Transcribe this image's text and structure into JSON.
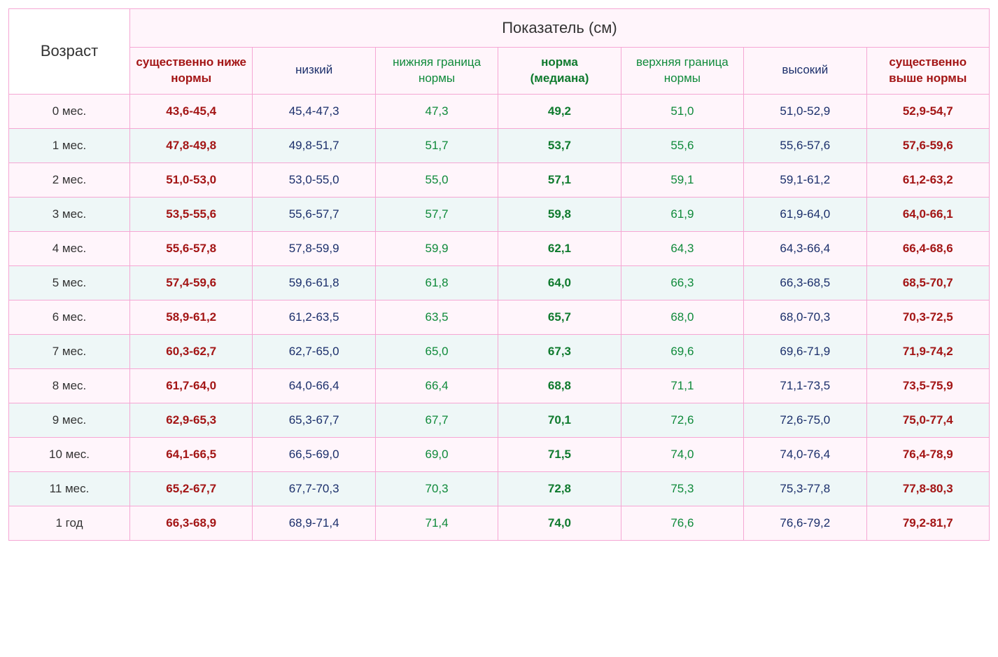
{
  "table": {
    "type": "table",
    "border_color": "#f5a7d4",
    "row_bg_odd": "#fff5fb",
    "row_bg_even": "#eef7f7",
    "header_bg": "#fff5fb",
    "age_header_bg": "#ffffff",
    "font_family": "Verdana",
    "cell_fontsize": 17,
    "header_fontsize": 22,
    "subheader_fontsize": 17,
    "colors": {
      "red": "#a31515",
      "navy": "#1b2f6b",
      "green": "#0f8a3a",
      "green_bold": "#0f7a2e",
      "black": "#333333"
    },
    "age_header": "Возраст",
    "metric_header": "Показатель (см)",
    "columns": [
      {
        "key": "very_low",
        "label": "существенно ниже нормы",
        "style": "red",
        "bold": true
      },
      {
        "key": "low",
        "label": "низкий",
        "style": "navy",
        "bold": false
      },
      {
        "key": "lower_norm",
        "label": "нижняя граница нормы",
        "style": "green",
        "bold": false
      },
      {
        "key": "median",
        "label": "норма\n(медиана)",
        "style": "greenb",
        "bold": true
      },
      {
        "key": "upper_norm",
        "label": "верхняя граница нормы",
        "style": "green",
        "bold": false
      },
      {
        "key": "high",
        "label": "высокий",
        "style": "navy",
        "bold": false
      },
      {
        "key": "very_high",
        "label": "существенно выше нормы",
        "style": "red",
        "bold": true
      }
    ],
    "rows": [
      {
        "age": "0 мес.",
        "cells": [
          "43,6-45,4",
          "45,4-47,3",
          "47,3",
          "49,2",
          "51,0",
          "51,0-52,9",
          "52,9-54,7"
        ]
      },
      {
        "age": "1 мес.",
        "cells": [
          "47,8-49,8",
          "49,8-51,7",
          "51,7",
          "53,7",
          "55,6",
          "55,6-57,6",
          "57,6-59,6"
        ]
      },
      {
        "age": "2 мес.",
        "cells": [
          "51,0-53,0",
          "53,0-55,0",
          "55,0",
          "57,1",
          "59,1",
          "59,1-61,2",
          "61,2-63,2"
        ]
      },
      {
        "age": "3 мес.",
        "cells": [
          "53,5-55,6",
          "55,6-57,7",
          "57,7",
          "59,8",
          "61,9",
          "61,9-64,0",
          "64,0-66,1"
        ]
      },
      {
        "age": "4 мес.",
        "cells": [
          "55,6-57,8",
          "57,8-59,9",
          "59,9",
          "62,1",
          "64,3",
          "64,3-66,4",
          "66,4-68,6"
        ]
      },
      {
        "age": "5 мес.",
        "cells": [
          "57,4-59,6",
          "59,6-61,8",
          "61,8",
          "64,0",
          "66,3",
          "66,3-68,5",
          "68,5-70,7"
        ]
      },
      {
        "age": "6 мес.",
        "cells": [
          "58,9-61,2",
          "61,2-63,5",
          "63,5",
          "65,7",
          "68,0",
          "68,0-70,3",
          "70,3-72,5"
        ]
      },
      {
        "age": "7 мес.",
        "cells": [
          "60,3-62,7",
          "62,7-65,0",
          "65,0",
          "67,3",
          "69,6",
          "69,6-71,9",
          "71,9-74,2"
        ]
      },
      {
        "age": "8 мес.",
        "cells": [
          "61,7-64,0",
          "64,0-66,4",
          "66,4",
          "68,8",
          "71,1",
          "71,1-73,5",
          "73,5-75,9"
        ]
      },
      {
        "age": "9 мес.",
        "cells": [
          "62,9-65,3",
          "65,3-67,7",
          "67,7",
          "70,1",
          "72,6",
          "72,6-75,0",
          "75,0-77,4"
        ]
      },
      {
        "age": "10 мес.",
        "cells": [
          "64,1-66,5",
          "66,5-69,0",
          "69,0",
          "71,5",
          "74,0",
          "74,0-76,4",
          "76,4-78,9"
        ]
      },
      {
        "age": "11 мес.",
        "cells": [
          "65,2-67,7",
          "67,7-70,3",
          "70,3",
          "72,8",
          "75,3",
          "75,3-77,8",
          "77,8-80,3"
        ]
      },
      {
        "age": "1 год",
        "cells": [
          "66,3-68,9",
          "68,9-71,4",
          "71,4",
          "74,0",
          "76,6",
          "76,6-79,2",
          "79,2-81,7"
        ]
      }
    ]
  }
}
